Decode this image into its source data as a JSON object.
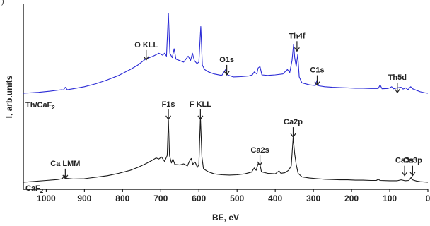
{
  "corner_mark": ")",
  "chart_data": {
    "type": "line",
    "xlabel": "BE, eV",
    "ylabel": "I,  arb.units",
    "xlim": [
      1060,
      0
    ],
    "x_reversed": true,
    "x_ticks": [
      1000,
      900,
      800,
      700,
      600,
      500,
      400,
      300,
      200,
      100,
      0
    ],
    "grid": false,
    "colors": {
      "Th/CaF2": "#2b2bd6",
      "CaF2": "#1a1a1a",
      "axes": "#000000"
    },
    "series": [
      {
        "name": "Th/CaF2",
        "label_text": "Th/CaF",
        "label_sub": "2",
        "color": "#2b2bd6",
        "baseline_y": 0.0,
        "points": [
          [
            1060,
            0.0
          ],
          [
            1020,
            0.03
          ],
          [
            990,
            0.07
          ],
          [
            960,
            0.12
          ],
          [
            955,
            0.11
          ],
          [
            950,
            0.2
          ],
          [
            945,
            0.12
          ],
          [
            930,
            0.15
          ],
          [
            900,
            0.22
          ],
          [
            870,
            0.32
          ],
          [
            840,
            0.45
          ],
          [
            810,
            0.6
          ],
          [
            780,
            0.8
          ],
          [
            760,
            0.95
          ],
          [
            740,
            1.15
          ],
          [
            730,
            1.2
          ],
          [
            720,
            1.25
          ],
          [
            712,
            1.3
          ],
          [
            705,
            1.35
          ],
          [
            695,
            1.28
          ],
          [
            690,
            1.35
          ],
          [
            685,
            1.25
          ],
          [
            680,
            2.7
          ],
          [
            676,
            1.35
          ],
          [
            670,
            1.2
          ],
          [
            665,
            1.5
          ],
          [
            660,
            1.15
          ],
          [
            650,
            1.1
          ],
          [
            640,
            1.05
          ],
          [
            628,
            1.25
          ],
          [
            622,
            1.1
          ],
          [
            617,
            1.35
          ],
          [
            612,
            1.1
          ],
          [
            605,
            1.0
          ],
          [
            600,
            1.05
          ],
          [
            595,
            2.25
          ],
          [
            591,
            0.95
          ],
          [
            585,
            0.8
          ],
          [
            575,
            0.72
          ],
          [
            560,
            0.65
          ],
          [
            540,
            0.6
          ],
          [
            530,
            0.8
          ],
          [
            525,
            0.62
          ],
          [
            510,
            0.55
          ],
          [
            490,
            0.56
          ],
          [
            470,
            0.58
          ],
          [
            460,
            0.62
          ],
          [
            455,
            0.72
          ],
          [
            448,
            0.65
          ],
          [
            445,
            0.85
          ],
          [
            440,
            0.9
          ],
          [
            435,
            0.62
          ],
          [
            420,
            0.6
          ],
          [
            400,
            0.62
          ],
          [
            380,
            0.65
          ],
          [
            368,
            0.8
          ],
          [
            362,
            0.7
          ],
          [
            356,
            1.1
          ],
          [
            352,
            1.65
          ],
          [
            349,
            1.2
          ],
          [
            345,
            0.9
          ],
          [
            341,
            1.3
          ],
          [
            337,
            0.55
          ],
          [
            330,
            0.35
          ],
          [
            310,
            0.28
          ],
          [
            295,
            0.26
          ],
          [
            290,
            0.45
          ],
          [
            286,
            0.25
          ],
          [
            270,
            0.22
          ],
          [
            250,
            0.2
          ],
          [
            230,
            0.19
          ],
          [
            210,
            0.18
          ],
          [
            190,
            0.17
          ],
          [
            170,
            0.17
          ],
          [
            150,
            0.16
          ],
          [
            130,
            0.16
          ],
          [
            125,
            0.28
          ],
          [
            120,
            0.15
          ],
          [
            105,
            0.16
          ],
          [
            100,
            0.18
          ],
          [
            95,
            0.22
          ],
          [
            90,
            0.15
          ],
          [
            80,
            0.18
          ],
          [
            70,
            0.2
          ],
          [
            65,
            0.14
          ],
          [
            58,
            0.18
          ],
          [
            52,
            0.12
          ],
          [
            45,
            0.22
          ],
          [
            40,
            0.15
          ],
          [
            30,
            0.1
          ],
          [
            20,
            0.05
          ],
          [
            10,
            0.02
          ],
          [
            0,
            0.0
          ]
        ],
        "annotations": [
          {
            "text": "O KLL",
            "x": 738,
            "y": 1.55,
            "arrow": true
          },
          {
            "text": "O1s",
            "x": 527,
            "y": 1.05,
            "arrow": true
          },
          {
            "text": "Th4f",
            "x": 343,
            "y": 1.85,
            "arrow": true
          },
          {
            "text": "C1s",
            "x": 290,
            "y": 0.7,
            "arrow": true
          },
          {
            "text": "Th5d",
            "x": 80,
            "y": 0.45,
            "arrow": true
          }
        ]
      },
      {
        "name": "CaF2",
        "label_text": "CaF",
        "label_sub": "2",
        "color": "#1a1a1a",
        "baseline_y": 0.0,
        "points": [
          [
            1060,
            0.0
          ],
          [
            1040,
            0.02
          ],
          [
            1000,
            0.06
          ],
          [
            970,
            0.09
          ],
          [
            958,
            0.12
          ],
          [
            952,
            0.22
          ],
          [
            946,
            0.13
          ],
          [
            930,
            0.11
          ],
          [
            900,
            0.12
          ],
          [
            870,
            0.17
          ],
          [
            840,
            0.22
          ],
          [
            810,
            0.3
          ],
          [
            780,
            0.4
          ],
          [
            760,
            0.5
          ],
          [
            740,
            0.62
          ],
          [
            725,
            0.72
          ],
          [
            712,
            0.82
          ],
          [
            705,
            0.78
          ],
          [
            698,
            0.85
          ],
          [
            690,
            0.7
          ],
          [
            683,
            0.9
          ],
          [
            680,
            2.1
          ],
          [
            677,
            0.9
          ],
          [
            672,
            0.65
          ],
          [
            668,
            0.78
          ],
          [
            663,
            0.6
          ],
          [
            650,
            0.58
          ],
          [
            640,
            0.62
          ],
          [
            630,
            0.55
          ],
          [
            625,
            0.7
          ],
          [
            620,
            0.8
          ],
          [
            616,
            0.6
          ],
          [
            610,
            0.68
          ],
          [
            604,
            0.5
          ],
          [
            600,
            0.6
          ],
          [
            596,
            2.2
          ],
          [
            592,
            0.85
          ],
          [
            588,
            0.45
          ],
          [
            575,
            0.35
          ],
          [
            560,
            0.28
          ],
          [
            540,
            0.25
          ],
          [
            520,
            0.24
          ],
          [
            500,
            0.25
          ],
          [
            480,
            0.28
          ],
          [
            462,
            0.34
          ],
          [
            455,
            0.48
          ],
          [
            450,
            0.4
          ],
          [
            445,
            0.62
          ],
          [
            440,
            0.6
          ],
          [
            436,
            0.35
          ],
          [
            420,
            0.3
          ],
          [
            400,
            0.28
          ],
          [
            390,
            0.38
          ],
          [
            385,
            0.3
          ],
          [
            375,
            0.32
          ],
          [
            365,
            0.4
          ],
          [
            358,
            0.55
          ],
          [
            353,
            1.5
          ],
          [
            349,
            0.95
          ],
          [
            345,
            0.6
          ],
          [
            340,
            0.3
          ],
          [
            330,
            0.18
          ],
          [
            310,
            0.14
          ],
          [
            290,
            0.12
          ],
          [
            270,
            0.1
          ],
          [
            250,
            0.09
          ],
          [
            230,
            0.08
          ],
          [
            210,
            0.08
          ],
          [
            190,
            0.07
          ],
          [
            170,
            0.07
          ],
          [
            150,
            0.06
          ],
          [
            135,
            0.06
          ],
          [
            130,
            0.1
          ],
          [
            125,
            0.06
          ],
          [
            100,
            0.05
          ],
          [
            80,
            0.05
          ],
          [
            70,
            0.08
          ],
          [
            60,
            0.05
          ],
          [
            50,
            0.06
          ],
          [
            44,
            0.16
          ],
          [
            40,
            0.08
          ],
          [
            30,
            0.04
          ],
          [
            20,
            0.02
          ],
          [
            10,
            0.01
          ],
          [
            0,
            0.0
          ]
        ],
        "annotations": [
          {
            "text": "Ca LMM",
            "x": 950,
            "y": 0.55,
            "arrow": true
          },
          {
            "text": "F1s",
            "x": 680,
            "y": 2.55,
            "arrow": true
          },
          {
            "text": "F KLL",
            "x": 596,
            "y": 2.55,
            "arrow": true
          },
          {
            "text": "Ca2s",
            "x": 440,
            "y": 1.0,
            "arrow": true
          },
          {
            "text": "Ca2p",
            "x": 353,
            "y": 1.95,
            "arrow": true
          },
          {
            "text": "Ca3s",
            "x": 61,
            "y": 0.65,
            "arrow": true
          },
          {
            "text": "Ca3p",
            "x": 40,
            "y": 0.65,
            "arrow": true
          }
        ]
      }
    ]
  }
}
